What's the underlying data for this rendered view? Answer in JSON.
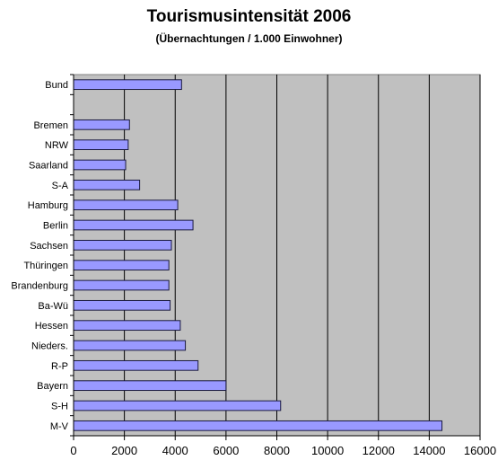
{
  "chart_data": {
    "type": "bar",
    "orientation": "horizontal",
    "title": "Tourismusintensität 2006",
    "subtitle": "(Übernachtungen / 1.000 Einwohner)",
    "categories": [
      "Bund",
      "",
      "Bremen",
      "NRW",
      "Saarland",
      "S-A",
      "Hamburg",
      "Berlin",
      "Sachsen",
      "Thüringen",
      "Brandenburg",
      "Ba-Wü",
      "Hessen",
      "Nieders.",
      "R-P",
      "Bayern",
      "S-H",
      "M-V"
    ],
    "values": [
      4250,
      null,
      2200,
      2150,
      2050,
      2600,
      4100,
      4700,
      3850,
      3750,
      3750,
      3800,
      4200,
      4400,
      4900,
      6000,
      8150,
      14500
    ],
    "xlim": [
      0,
      16000
    ],
    "xticks": [
      0,
      2000,
      4000,
      6000,
      8000,
      10000,
      12000,
      14000,
      16000
    ],
    "xtick_labels": [
      "0",
      "2000",
      "4000",
      "6000",
      "8000",
      "10000",
      "12000",
      "14000",
      "16000"
    ],
    "grid": true,
    "colors": {
      "bar": "#9999ff",
      "bar_border": "#1a1a40",
      "plot_bg": "#c0c0c0",
      "grid": "#000000"
    }
  }
}
